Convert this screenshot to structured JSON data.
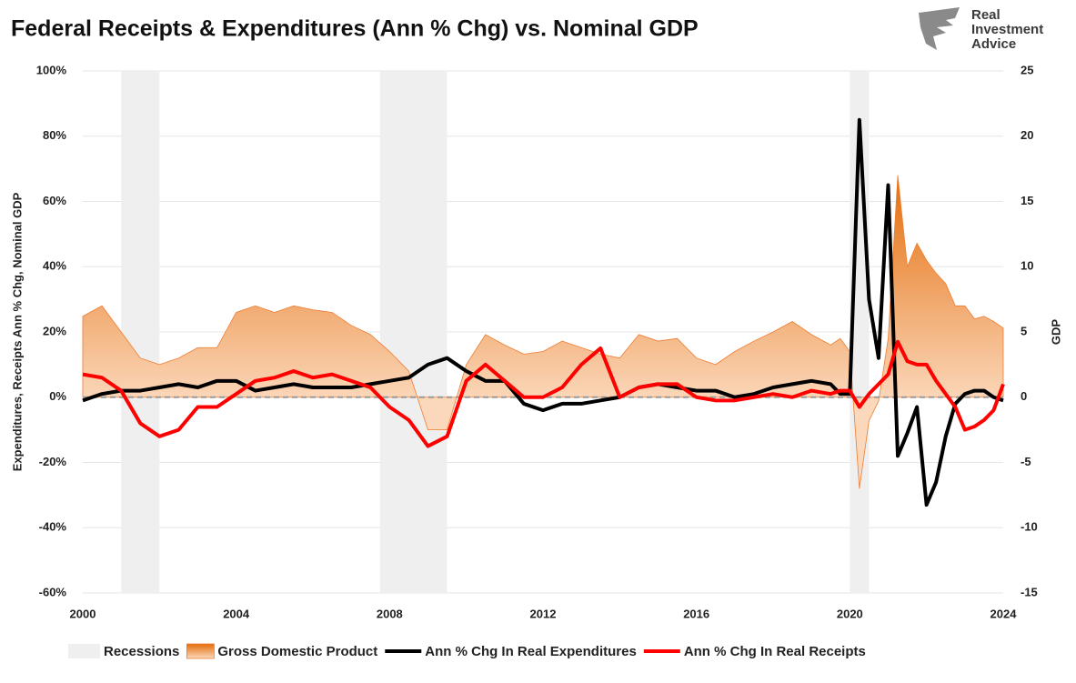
{
  "brand": {
    "lines": [
      "Real",
      "Investment",
      "Advice"
    ]
  },
  "chart_data": {
    "type": "line",
    "title": "Federal Receipts & Expenditures (Ann % Chg) vs. Nominal GDP",
    "y_label": "Expenditures, Receipts Ann % Chg, Nominal GDP",
    "y2_label": "GDP",
    "x": [
      2000,
      2000.5,
      2001,
      2001.5,
      2002,
      2002.5,
      2003,
      2003.5,
      2004,
      2004.5,
      2005,
      2005.5,
      2006,
      2006.5,
      2007,
      2007.5,
      2008,
      2008.5,
      2009,
      2009.5,
      2010,
      2010.5,
      2011,
      2011.5,
      2012,
      2012.5,
      2013,
      2013.5,
      2014,
      2014.5,
      2015,
      2015.5,
      2016,
      2016.5,
      2017,
      2017.5,
      2018,
      2018.5,
      2019,
      2019.5,
      2019.75,
      2020,
      2020.25,
      2020.5,
      2020.75,
      2021,
      2021.25,
      2021.5,
      2021.75,
      2022,
      2022.25,
      2022.5,
      2022.75,
      2023,
      2023.25,
      2023.5,
      2023.75,
      2024
    ],
    "series": [
      {
        "name": "Recessions",
        "type": "span",
        "color": "#efefef",
        "ranges": [
          [
            2001,
            2002
          ],
          [
            2007.75,
            2009.5
          ],
          [
            2020,
            2020.5
          ]
        ]
      },
      {
        "name": "Gross Domestic Product",
        "type": "area",
        "axis": "y2",
        "color": "#ed7d31",
        "values": [
          6.2,
          7.0,
          5.0,
          3.0,
          2.5,
          3.0,
          3.8,
          3.8,
          6.5,
          7.0,
          6.5,
          7.0,
          6.7,
          6.5,
          5.5,
          4.8,
          3.5,
          2.0,
          -2.5,
          -2.5,
          2.5,
          4.8,
          4.0,
          3.3,
          3.5,
          4.3,
          3.8,
          3.3,
          3.0,
          4.8,
          4.3,
          4.5,
          3.0,
          2.5,
          3.5,
          4.3,
          5.0,
          5.8,
          4.8,
          4.0,
          4.5,
          3.5,
          -7.0,
          -1.8,
          -0.3,
          4.5,
          17.0,
          10.0,
          11.8,
          10.5,
          9.5,
          8.7,
          7.0,
          7.0,
          6.0,
          6.2,
          5.8,
          5.3
        ]
      },
      {
        "name": "Ann % Chg In Real Expenditures",
        "type": "line",
        "color": "#000000",
        "values": [
          -1,
          1,
          2,
          2,
          3,
          4,
          3,
          5,
          5,
          2,
          3,
          4,
          3,
          3,
          3,
          4,
          5,
          6,
          10,
          12,
          8,
          5,
          5,
          -2,
          -4,
          -2,
          -2,
          -1,
          0,
          3,
          4,
          3,
          2,
          2,
          0,
          1,
          3,
          4,
          5,
          4,
          1,
          1,
          85,
          30,
          12,
          65,
          -18,
          -11,
          -3,
          -33,
          -26,
          -12,
          -2,
          1,
          2,
          2,
          0,
          -1
        ]
      },
      {
        "name": "Ann % Chg In Real Receipts",
        "type": "line",
        "color": "#ff0000",
        "values": [
          7,
          6,
          2,
          -8,
          -12,
          -10,
          -3,
          -3,
          1,
          5,
          6,
          8,
          6,
          7,
          5,
          3,
          -3,
          -7,
          -15,
          -12,
          5,
          10,
          5,
          0,
          0,
          3,
          10,
          15,
          0,
          3,
          4,
          4,
          0,
          -1,
          -1,
          0,
          1,
          0,
          2,
          1,
          2,
          2,
          -3,
          1,
          4,
          7,
          17,
          11,
          10,
          10,
          5,
          1,
          -3,
          -10,
          -9,
          -7,
          -4,
          4
        ]
      }
    ],
    "xlim": [
      2000,
      2024
    ],
    "xticks": [
      2000,
      2004,
      2008,
      2012,
      2016,
      2020,
      2024
    ],
    "ylim": [
      -60,
      100
    ],
    "yticks": [
      {
        "value": 100,
        "label": "100%"
      },
      {
        "value": 80,
        "label": "80%"
      },
      {
        "value": 60,
        "label": "60%"
      },
      {
        "value": 40,
        "label": "40%"
      },
      {
        "value": 20,
        "label": "20%"
      },
      {
        "value": 0,
        "label": "0%"
      },
      {
        "value": -20,
        "label": "-20%"
      },
      {
        "value": -40,
        "label": "-40%"
      },
      {
        "value": -60,
        "label": "-60%"
      }
    ],
    "y2lim": [
      -15,
      25
    ],
    "y2ticks": [
      25,
      20,
      15,
      10,
      5,
      0,
      -5,
      -10,
      -15
    ],
    "grid": true,
    "legend": "bottom"
  }
}
